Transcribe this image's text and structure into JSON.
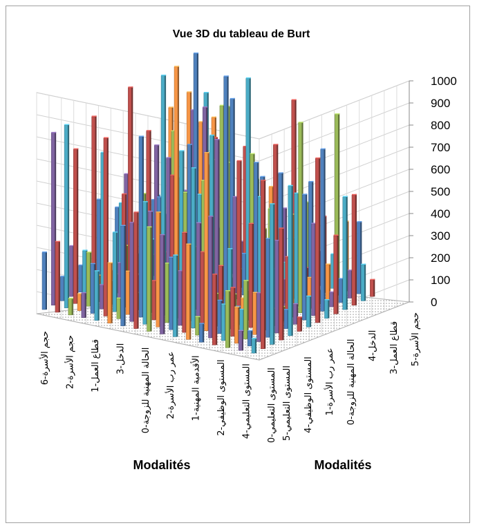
{
  "chart_data": {
    "type": "bar3d",
    "title": "Vue 3D du tableau de Burt",
    "x_axis_title": "Modalités",
    "y_axis_title": "Modalités",
    "zlim": [
      0,
      1000
    ],
    "z_ticks": [
      "0",
      "100",
      "200",
      "300",
      "400",
      "500",
      "600",
      "700",
      "800",
      "900",
      "1000"
    ],
    "grid": true,
    "legend": "none",
    "x_categories": [
      "حجم الأسرة-6",
      "حجم الأسرة-2",
      "قطاع العمل-1",
      "الدخل-3",
      "الحالة المهنية للزوجة-0",
      "عمر رب الأسرة-2",
      "الأقدمية المهنية-1",
      "المستوى الوظيفي-2",
      "المستوى التعليمي-4",
      "المستوى التعليمي-0",
      "المستوى التعليمي-5",
      "المستوى الوظيفي-4",
      "عمر رب الأسرة-1",
      "الحالة المهنية للزوجة-0",
      "الدخل-4",
      "قطاع العمل-3",
      "حجم الأسرة-5"
    ],
    "series_colors": [
      "#4f81bd",
      "#c0504d",
      "#9bbb59",
      "#8064a2",
      "#4bacc6",
      "#f79646"
    ],
    "peaks": [
      {
        "value": 920,
        "color": "#9bbb59"
      },
      {
        "value": 840,
        "color": "#f79646"
      },
      {
        "value": 680,
        "color": "#8064a2"
      },
      {
        "value": 530,
        "color": "#9bbb59"
      },
      {
        "value": 520,
        "color": "#f79646"
      },
      {
        "value": 490,
        "color": "#9bbb59"
      },
      {
        "value": 460,
        "color": "#8064a2"
      },
      {
        "value": 450,
        "color": "#f79646"
      }
    ]
  }
}
